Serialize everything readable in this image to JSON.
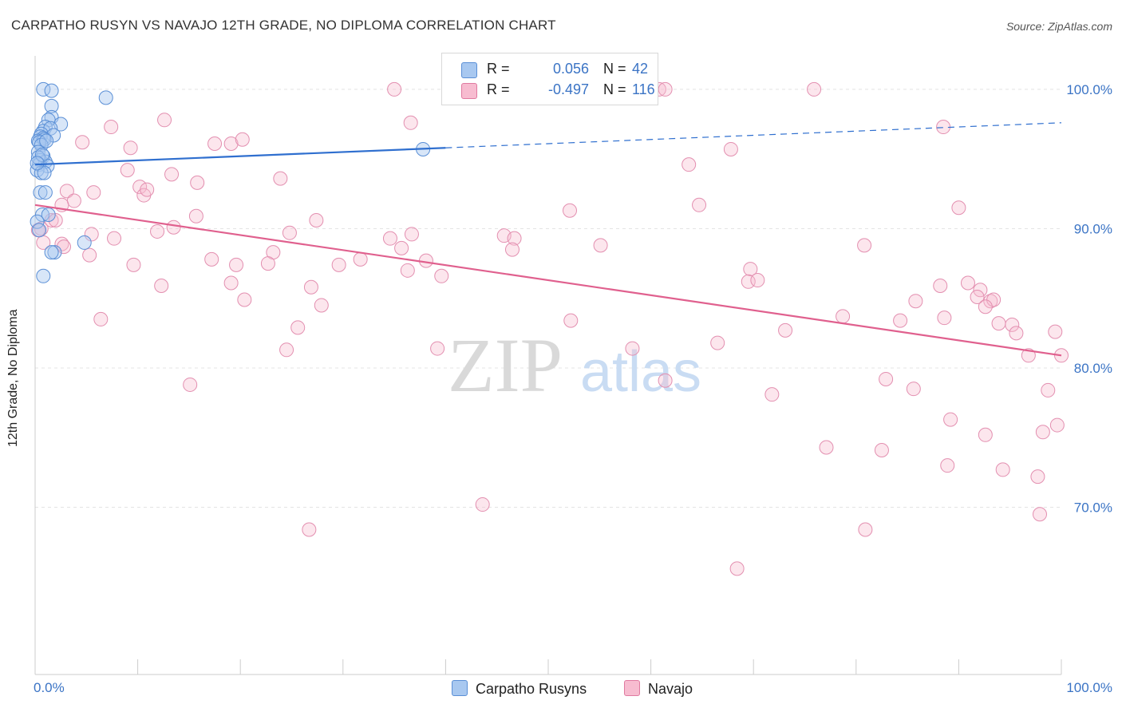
{
  "title": "CARPATHO RUSYN VS NAVAJO 12TH GRADE, NO DIPLOMA CORRELATION CHART",
  "source": "Source: ZipAtlas.com",
  "watermark": {
    "zip": "ZIP",
    "atlas": "atlas"
  },
  "legend": {
    "rows": [
      {
        "r_label": "R =",
        "r_value": "0.056",
        "n_label": "N =",
        "n_value": "42",
        "color": "#a8c8f0",
        "border": "#5a8fd6"
      },
      {
        "r_label": "R =",
        "r_value": "-0.497",
        "n_label": "N =",
        "n_value": "116",
        "color": "#f7bcd0",
        "border": "#e07aa0"
      }
    ]
  },
  "bottom_legend": [
    {
      "label": "Carpatho Rusyns",
      "color": "#a8c8f0",
      "border": "#5a8fd6"
    },
    {
      "label": "Navajo",
      "color": "#f7bcd0",
      "border": "#e07aa0"
    }
  ],
  "colors": {
    "blue": "#2f6fcf",
    "pink": "#e0608e",
    "blue_fill": "#a8c8f0",
    "pink_fill": "#f7bcd0",
    "tick_text": "#3b74c5"
  },
  "chart_data": {
    "type": "scatter",
    "title": "CARPATHO RUSYN VS NAVAJO 12TH GRADE, NO DIPLOMA CORRELATION CHART",
    "xlabel": "",
    "ylabel": "12th Grade, No Diploma",
    "xlim": [
      0,
      100
    ],
    "ylim": [
      58,
      102
    ],
    "x_tick_labels": [
      "0.0%",
      "100.0%"
    ],
    "y_ticks": [
      70,
      80,
      90,
      100
    ],
    "y_tick_labels": [
      "70.0%",
      "80.0%",
      "90.0%",
      "100.0%"
    ],
    "grid": true,
    "series": [
      {
        "name": "Carpatho Rusyns",
        "r": 0.056,
        "n": 42,
        "trend": {
          "x0": 0,
          "y0": 94.6,
          "x1": 40,
          "y1": 95.8,
          "dashed_to_x": 100,
          "dashed_to_y": 97.6
        },
        "points": [
          [
            0.8,
            100
          ],
          [
            1.6,
            99.9
          ],
          [
            6.9,
            99.4
          ],
          [
            1.6,
            98.8
          ],
          [
            1.6,
            98.0
          ],
          [
            1.3,
            97.8
          ],
          [
            2.5,
            97.5
          ],
          [
            1.0,
            97.3
          ],
          [
            0.8,
            97.0
          ],
          [
            1.5,
            97.2
          ],
          [
            0.6,
            96.8
          ],
          [
            1.8,
            96.7
          ],
          [
            0.5,
            96.6
          ],
          [
            0.8,
            96.5
          ],
          [
            0.3,
            96.3
          ],
          [
            0.9,
            96.4
          ],
          [
            0.4,
            96.2
          ],
          [
            0.6,
            96.0
          ],
          [
            0.3,
            95.5
          ],
          [
            0.8,
            95.2
          ],
          [
            37.8,
            95.7
          ],
          [
            0.5,
            94.9
          ],
          [
            1.0,
            94.8
          ],
          [
            0.4,
            94.6
          ],
          [
            1.2,
            94.5
          ],
          [
            0.2,
            94.2
          ],
          [
            0.6,
            94.0
          ],
          [
            0.9,
            94.0
          ],
          [
            0.5,
            92.6
          ],
          [
            1.0,
            92.6
          ],
          [
            0.7,
            91.0
          ],
          [
            1.3,
            91.0
          ],
          [
            0.2,
            90.5
          ],
          [
            0.4,
            89.9
          ],
          [
            1.9,
            88.3
          ],
          [
            4.8,
            89.0
          ],
          [
            1.6,
            88.3
          ],
          [
            0.8,
            86.6
          ],
          [
            1.1,
            96.3
          ],
          [
            0.3,
            95.1
          ],
          [
            0.7,
            95.3
          ],
          [
            0.2,
            94.7
          ]
        ]
      },
      {
        "name": "Navajo",
        "r": -0.497,
        "n": 116,
        "trend": {
          "x0": 0,
          "y0": 91.7,
          "x1": 100,
          "y1": 80.9
        },
        "points": [
          [
            35,
            100
          ],
          [
            52.7,
            100
          ],
          [
            60.8,
            100
          ],
          [
            61.4,
            100
          ],
          [
            75.9,
            100
          ],
          [
            36.6,
            97.6
          ],
          [
            7.4,
            97.3
          ],
          [
            12.6,
            97.8
          ],
          [
            88.5,
            97.3
          ],
          [
            4.6,
            96.2
          ],
          [
            17.5,
            96.1
          ],
          [
            19.1,
            96.1
          ],
          [
            20.2,
            96.4
          ],
          [
            9.3,
            95.8
          ],
          [
            67.8,
            95.7
          ],
          [
            63.7,
            94.6
          ],
          [
            9.0,
            94.2
          ],
          [
            13.3,
            93.9
          ],
          [
            23.9,
            93.6
          ],
          [
            15.8,
            93.3
          ],
          [
            10.2,
            93.0
          ],
          [
            10.6,
            92.4
          ],
          [
            10.9,
            92.8
          ],
          [
            3.1,
            92.7
          ],
          [
            5.7,
            92.6
          ],
          [
            3.8,
            92.0
          ],
          [
            2.6,
            91.7
          ],
          [
            52.1,
            91.3
          ],
          [
            64.7,
            91.7
          ],
          [
            90.0,
            91.5
          ],
          [
            15.7,
            90.9
          ],
          [
            27.4,
            90.6
          ],
          [
            1.6,
            90.6
          ],
          [
            2.0,
            90.6
          ],
          [
            13.5,
            90.1
          ],
          [
            0.6,
            90.0
          ],
          [
            0.3,
            89.9
          ],
          [
            11.9,
            89.8
          ],
          [
            5.5,
            89.6
          ],
          [
            24.8,
            89.7
          ],
          [
            36.7,
            89.6
          ],
          [
            45.7,
            89.5
          ],
          [
            7.7,
            89.3
          ],
          [
            34.6,
            89.3
          ],
          [
            46.7,
            89.3
          ],
          [
            0.8,
            89.0
          ],
          [
            2.6,
            88.9
          ],
          [
            55.1,
            88.8
          ],
          [
            80.8,
            88.8
          ],
          [
            2.8,
            88.7
          ],
          [
            35.7,
            88.6
          ],
          [
            46.5,
            88.5
          ],
          [
            23.2,
            88.3
          ],
          [
            5.3,
            88.1
          ],
          [
            17.2,
            87.8
          ],
          [
            31.7,
            87.8
          ],
          [
            38.1,
            87.7
          ],
          [
            9.6,
            87.4
          ],
          [
            19.6,
            87.4
          ],
          [
            22.7,
            87.5
          ],
          [
            29.6,
            87.4
          ],
          [
            69.7,
            87.1
          ],
          [
            36.3,
            87.0
          ],
          [
            39.6,
            86.6
          ],
          [
            69.5,
            86.2
          ],
          [
            70.4,
            86.3
          ],
          [
            19.1,
            86.1
          ],
          [
            12.3,
            85.9
          ],
          [
            26.9,
            85.8
          ],
          [
            88.2,
            85.9
          ],
          [
            90.9,
            86.1
          ],
          [
            92.1,
            85.6
          ],
          [
            91.8,
            85.1
          ],
          [
            93.1,
            84.8
          ],
          [
            93.4,
            84.9
          ],
          [
            20.4,
            84.9
          ],
          [
            85.8,
            84.8
          ],
          [
            27.9,
            84.5
          ],
          [
            92.6,
            84.4
          ],
          [
            78.7,
            83.7
          ],
          [
            88.6,
            83.6
          ],
          [
            6.4,
            83.5
          ],
          [
            52.2,
            83.4
          ],
          [
            84.3,
            83.4
          ],
          [
            93.9,
            83.2
          ],
          [
            95.2,
            83.1
          ],
          [
            25.6,
            82.9
          ],
          [
            73.1,
            82.7
          ],
          [
            95.6,
            82.5
          ],
          [
            99.4,
            82.6
          ],
          [
            66.5,
            81.8
          ],
          [
            24.5,
            81.3
          ],
          [
            39.2,
            81.4
          ],
          [
            58.2,
            81.4
          ],
          [
            96.8,
            80.9
          ],
          [
            100.0,
            80.9
          ],
          [
            82.9,
            79.2
          ],
          [
            61.4,
            79.1
          ],
          [
            15.1,
            78.8
          ],
          [
            85.6,
            78.5
          ],
          [
            98.7,
            78.4
          ],
          [
            71.8,
            78.1
          ],
          [
            89.2,
            76.3
          ],
          [
            99.6,
            75.9
          ],
          [
            98.2,
            75.4
          ],
          [
            92.6,
            75.2
          ],
          [
            77.1,
            74.3
          ],
          [
            82.5,
            74.1
          ],
          [
            88.9,
            73.0
          ],
          [
            94.3,
            72.7
          ],
          [
            97.7,
            72.2
          ],
          [
            43.6,
            70.2
          ],
          [
            97.9,
            69.5
          ],
          [
            26.7,
            68.4
          ],
          [
            80.9,
            68.4
          ],
          [
            68.4,
            65.6
          ]
        ]
      }
    ]
  }
}
